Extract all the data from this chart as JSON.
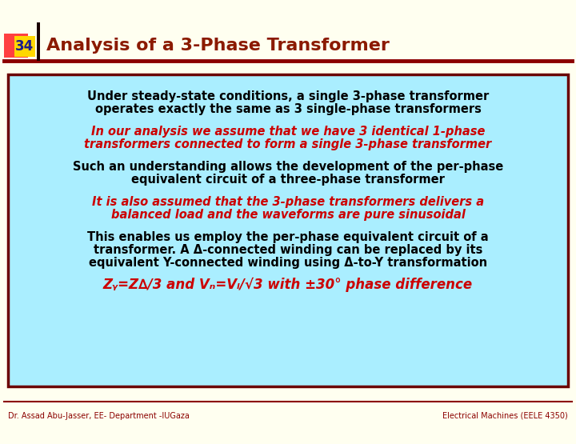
{
  "bg_color": "#FFFFF0",
  "slide_number": "34",
  "slide_number_color": "#1C1C8B",
  "slide_number_bg": "#FFD700",
  "accent_bar_color": "#1A0000",
  "title_text": "Analysis of a 3-Phase Transformer",
  "title_color": "#8B1A00",
  "title_separator_color": "#8B0000",
  "box_bg": "#AAEEFF",
  "box_border_color": "#6B0000",
  "text_black": "#000000",
  "text_red": "#CC0000",
  "footer_left": "Dr. Assad Abu-Jasser, EE- Department -IUGaza",
  "footer_right": "Electrical Machines (EELE 4350)",
  "footer_color": "#8B0000",
  "header_accent_left_color": "#FF6060",
  "para1_line1": "Under steady-state conditions, a single 3-phase transformer",
  "para1_line2": "operates exactly the same as 3 single-phase transformers",
  "para2_line1": "In our analysis we assume that we have 3 identical 1-phase",
  "para2_line2": "transformers connected to form a single 3-phase transformer",
  "para3_line1": "Such an understanding allows the development of the per-phase",
  "para3_line2": "equivalent circuit of a three-phase transformer",
  "para4_line1": "It is also assumed that the 3-phase transformers delivers a",
  "para4_line2": "balanced load and the waveforms are pure sinusoidal",
  "para5_line1": "This enables us employ the per-phase equivalent circuit of a",
  "para5_line2": "transformer. A Δ-connected winding can be replaced by its",
  "para5_line3": "equivalent Y-connected winding using Δ-to-Y transformation",
  "para6": "Zᵧ=Z∆/3 and Vₙ=Vₗ/√3 with ±30° phase difference"
}
